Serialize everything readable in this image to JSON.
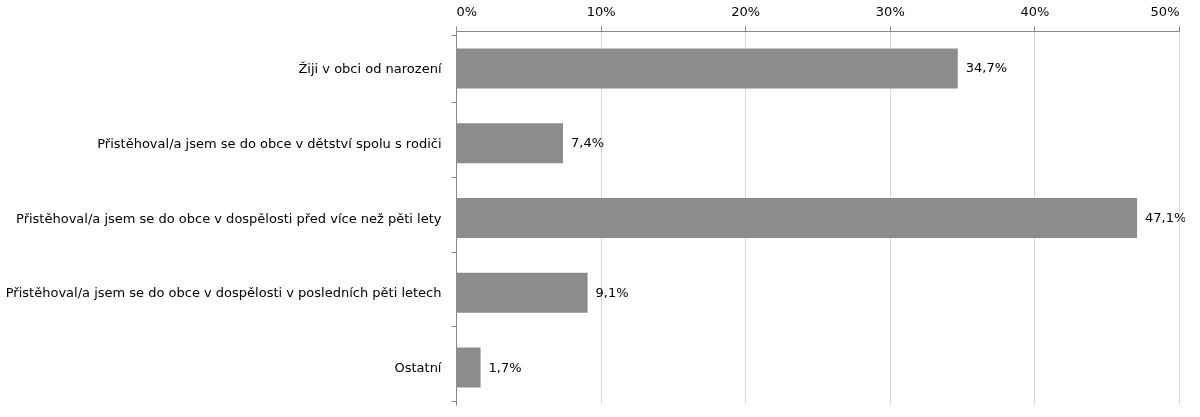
{
  "chart_data": {
    "type": "bar",
    "orientation": "horizontal",
    "categories": [
      "Žiji v obci od narození",
      "Přistěhoval/a jsem se do obce v dětství spolu s rodiči",
      "Přistěhoval/a jsem se do obce v dospělosti před více než pěti lety",
      "Přistěhoval/a jsem se do obce v dospělosti v posledních pěti letech",
      "Ostatní"
    ],
    "values": [
      34.7,
      7.4,
      47.1,
      9.1,
      1.7
    ],
    "value_labels": [
      "34,7%",
      "7,4%",
      "47,1%",
      "9,1%",
      "1,7%"
    ],
    "color": "#8c8c8c",
    "xlim": [
      0,
      50
    ],
    "xticks": [
      {
        "value": 0,
        "label": "0%"
      },
      {
        "value": 10,
        "label": "10%"
      },
      {
        "value": 20,
        "label": "20%"
      },
      {
        "value": 30,
        "label": "30%"
      },
      {
        "value": 40,
        "label": "40%"
      },
      {
        "value": 50,
        "label": "50%"
      }
    ],
    "grid": "x"
  }
}
